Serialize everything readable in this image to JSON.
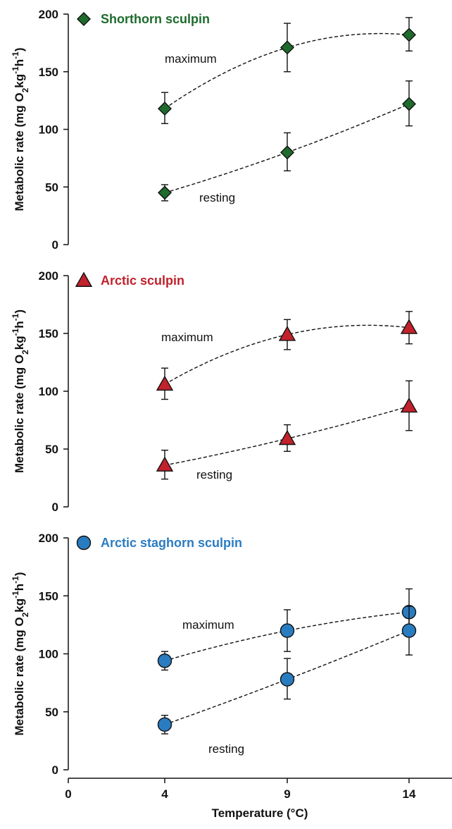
{
  "chart_data": [
    {
      "type": "scatter",
      "title": "Shorthorn sculpin",
      "color": "#1e6b2d",
      "marker": "diamond",
      "ylabel_main": "Metabolic rate (mg O",
      "ylabel_sub1": "2",
      "ylabel_mid": "kg",
      "ylabel_sup1": "-1",
      "ylabel_h": "h",
      "ylabel_sup2": "-1",
      "ylabel_end": ")",
      "ylim": [
        0,
        200
      ],
      "yticks": [
        "0",
        "50",
        "100",
        "150",
        "200"
      ],
      "x": [
        4,
        9,
        14
      ],
      "series": [
        {
          "name": "maximum",
          "values": [
            118,
            171,
            182
          ],
          "err_up": [
            14,
            21,
            15
          ],
          "err_down": [
            13,
            21,
            14
          ]
        },
        {
          "name": "resting",
          "values": [
            45,
            80,
            122
          ],
          "err_up": [
            7,
            17,
            20
          ],
          "err_down": [
            7,
            16,
            19
          ]
        }
      ]
    },
    {
      "type": "scatter",
      "title": "Arctic sculpin",
      "color": "#c1222b",
      "marker": "triangle",
      "ylabel_main": "Metabolic rate (mg O",
      "ylabel_sub1": "2",
      "ylabel_mid": "kg",
      "ylabel_sup1": "-1",
      "ylabel_h": "h",
      "ylabel_sup2": "-1",
      "ylabel_end": ")",
      "ylim": [
        0,
        200
      ],
      "yticks": [
        "0",
        "50",
        "100",
        "150",
        "200"
      ],
      "x": [
        4,
        9,
        14
      ],
      "series": [
        {
          "name": "maximum",
          "values": [
            106,
            149,
            155
          ],
          "err_up": [
            14,
            13,
            14
          ],
          "err_down": [
            13,
            13,
            14
          ]
        },
        {
          "name": "resting",
          "values": [
            36,
            59,
            87
          ],
          "err_up": [
            13,
            12,
            22
          ],
          "err_down": [
            12,
            11,
            21
          ]
        }
      ]
    },
    {
      "type": "scatter",
      "title": "Arctic staghorn sculpin",
      "color": "#2a7cc1",
      "marker": "circle",
      "ylabel_main": "Metabolic rate (mg O",
      "ylabel_sub1": "2",
      "ylabel_mid": "kg",
      "ylabel_sup1": "-1",
      "ylabel_h": "h",
      "ylabel_sup2": "-1",
      "ylabel_end": ")",
      "ylim": [
        0,
        200
      ],
      "yticks": [
        "0",
        "50",
        "100",
        "150",
        "200"
      ],
      "x": [
        4,
        9,
        14
      ],
      "xticks": [
        "0",
        "4",
        "9",
        "14"
      ],
      "xlabel": "Temperature (°C)",
      "series": [
        {
          "name": "maximum",
          "values": [
            94,
            120,
            136
          ],
          "err_up": [
            8,
            18,
            20
          ],
          "err_down": [
            8,
            18,
            20
          ]
        },
        {
          "name": "resting",
          "values": [
            39,
            78,
            120
          ],
          "err_up": [
            8,
            18,
            21
          ],
          "err_down": [
            8,
            17,
            21
          ]
        }
      ]
    }
  ]
}
